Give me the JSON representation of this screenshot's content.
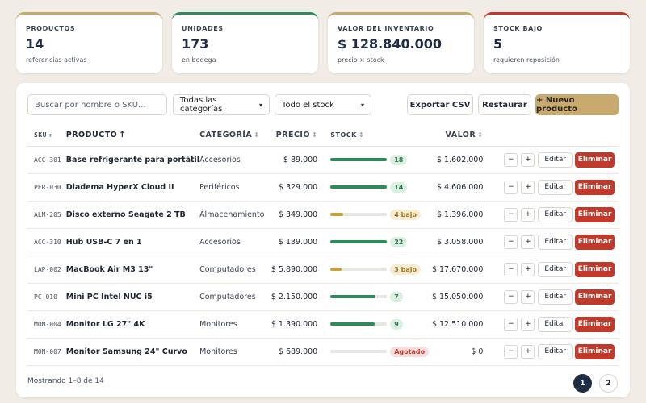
{
  "summary": [
    {
      "label": "PRODUCTOS",
      "value": "14",
      "sub": "referencias activas"
    },
    {
      "label": "UNIDADES",
      "value": "173",
      "sub": "en bodega"
    },
    {
      "label": "VALOR DEL INVENTARIO",
      "value": "$ 128.840.000",
      "sub": "precio × stock"
    },
    {
      "label": "STOCK BAJO",
      "value": "5",
      "sub": "requieren reposición"
    }
  ],
  "toolbar": {
    "search_placeholder": "Buscar por nombre o SKU...",
    "category_select": "Todas las categorías",
    "stock_select": "Todo el stock",
    "export_label": "Exportar CSV",
    "restore_label": "Restaurar",
    "new_label": "+ Nuevo producto"
  },
  "table": {
    "headers": {
      "sku": "SKU",
      "product": "PRODUCTO",
      "category": "CATEGORÍA",
      "price": "PRECIO",
      "stock": "STOCK",
      "value": "VALOR"
    },
    "rows": [
      {
        "sku": "ACC-301",
        "product": "Base refrigerante para portátil",
        "category": "Accesorios",
        "price": "$ 89.000",
        "stock": "18",
        "stock_level": 1.0,
        "stock_state": "ok",
        "value": "$ 1.602.000"
      },
      {
        "sku": "PER-030",
        "product": "Diadema HyperX Cloud II",
        "category": "Periféricos",
        "price": "$ 329.000",
        "stock": "14",
        "stock_level": 1.0,
        "stock_state": "ok",
        "value": "$ 4.606.000"
      },
      {
        "sku": "ALM-205",
        "product": "Disco externo Seagate 2 TB",
        "category": "Almacenamiento",
        "price": "$ 349.000",
        "stock": "4 bajo",
        "stock_level": 0.22,
        "stock_state": "low",
        "value": "$ 1.396.000"
      },
      {
        "sku": "ACC-310",
        "product": "Hub USB-C 7 en 1",
        "category": "Accesorios",
        "price": "$ 139.000",
        "stock": "22",
        "stock_level": 1.0,
        "stock_state": "ok",
        "value": "$ 3.058.000"
      },
      {
        "sku": "LAP-002",
        "product": "MacBook Air M3 13\"",
        "category": "Computadores",
        "price": "$ 5.890.000",
        "stock": "3 bajo",
        "stock_level": 0.2,
        "stock_state": "low",
        "value": "$ 17.670.000"
      },
      {
        "sku": "PC-010",
        "product": "Mini PC Intel NUC i5",
        "category": "Computadores",
        "price": "$ 2.150.000",
        "stock": "7",
        "stock_level": 0.8,
        "stock_state": "ok",
        "value": "$ 15.050.000"
      },
      {
        "sku": "MON-004",
        "product": "Monitor LG 27\" 4K",
        "category": "Monitores",
        "price": "$ 1.390.000",
        "stock": "9",
        "stock_level": 0.78,
        "stock_state": "ok",
        "value": "$ 12.510.000"
      },
      {
        "sku": "MON-007",
        "product": "Monitor Samsung 24\" Curvo",
        "category": "Monitores",
        "price": "$ 689.000",
        "stock": "Agotado",
        "stock_level": 0,
        "stock_state": "out",
        "value": "$ 0"
      }
    ],
    "actions": {
      "minus": "−",
      "plus": "+",
      "edit": "Editar",
      "delete": "Eliminar"
    }
  },
  "footer": {
    "showing": "Mostrando 1–8 de 14",
    "pages": [
      "1",
      "2"
    ]
  },
  "colors": {
    "accent": "#c9aa6e",
    "ok": "#2f8a5a",
    "low": "#c9a040",
    "danger": "#c0392b",
    "navy": "#1f2c44"
  }
}
